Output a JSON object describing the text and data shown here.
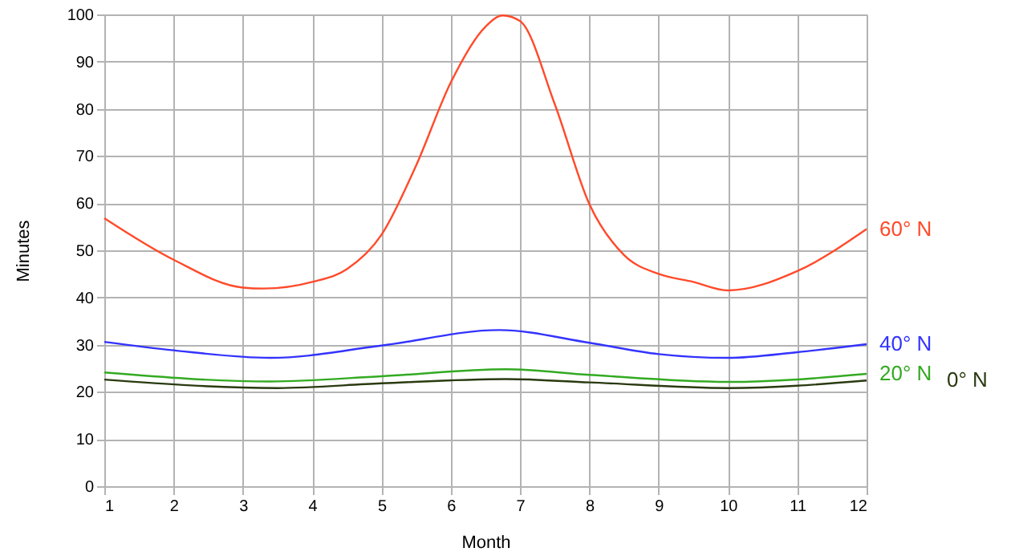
{
  "chart_data": {
    "type": "line",
    "xlabel": "Month",
    "ylabel": "Minutes",
    "xlim": [
      1,
      12
    ],
    "xticks": [
      1,
      2,
      3,
      4,
      5,
      6,
      7,
      8,
      9,
      10,
      11,
      12
    ],
    "ylim": [
      0,
      100
    ],
    "yticks": [
      0,
      10,
      20,
      30,
      40,
      50,
      60,
      70,
      80,
      90,
      100
    ],
    "grid": true,
    "marker": "none",
    "series": [
      {
        "name": "60° N",
        "color": "#ff4a2a",
        "x": [
          1,
          2,
          3,
          3.3,
          4,
          4.5,
          5,
          5.5,
          6,
          6.5,
          6.75,
          7,
          7.5,
          8,
          8.5,
          9,
          9.5,
          10,
          11,
          12
        ],
        "values": [
          56.8,
          48,
          42.1,
          41.9,
          43.3,
          46,
          53.3,
          68,
          85.6,
          97.4,
          99.8,
          98.6,
          81,
          59.8,
          49,
          45,
          43.3,
          41.5,
          45.6,
          54.5
        ]
      },
      {
        "name": "40° N",
        "color": "#3333ff",
        "x": [
          1,
          2,
          3.4,
          5,
          6.7,
          8,
          9,
          10,
          11,
          12
        ],
        "values": [
          30.6,
          28.8,
          27.2,
          29.8,
          33.1,
          30.4,
          28,
          27.2,
          28.4,
          30.1
        ]
      },
      {
        "name": "20° N",
        "color": "#33aa22",
        "x": [
          1,
          3.4,
          5,
          6.8,
          8,
          10,
          12
        ],
        "values": [
          24.1,
          22.2,
          23.3,
          24.8,
          23.6,
          22.1,
          23.8
        ]
      },
      {
        "name": "0° N",
        "color": "#2a3a10",
        "x": [
          1,
          3.5,
          5,
          6.8,
          8,
          10,
          12
        ],
        "values": [
          22.6,
          20.8,
          21.8,
          22.7,
          22,
          20.8,
          22.4
        ]
      }
    ]
  }
}
